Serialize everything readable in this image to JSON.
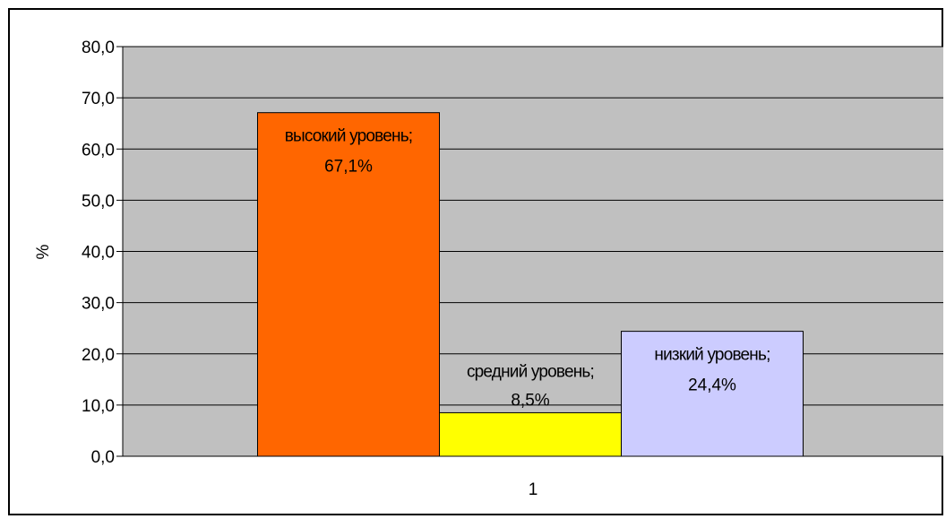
{
  "chart_data": {
    "type": "bar",
    "title": "",
    "xlabel": "",
    "ylabel": "%",
    "ylim": [
      0,
      80
    ],
    "yticks": [
      "0,0",
      "10,0",
      "20,0",
      "30,0",
      "40,0",
      "50,0",
      "60,0",
      "70,0",
      "80,0"
    ],
    "categories": [
      "1"
    ],
    "grid": true,
    "plot_background": "#c0c0c0",
    "series": [
      {
        "name": "высокий уровень",
        "values": [
          67.1
        ],
        "label_line1": "высокий уровень;",
        "label_line2": "67,1%",
        "color": "#ff6600"
      },
      {
        "name": "средний уровень",
        "values": [
          8.5
        ],
        "label_line1": "средний уровень;",
        "label_line2": "8,5%",
        "color": "#ffff00"
      },
      {
        "name": "низкий уровень",
        "values": [
          24.4
        ],
        "label_line1": "низкий уровень;",
        "label_line2": "24,4%",
        "color": "#ccccff"
      }
    ]
  }
}
